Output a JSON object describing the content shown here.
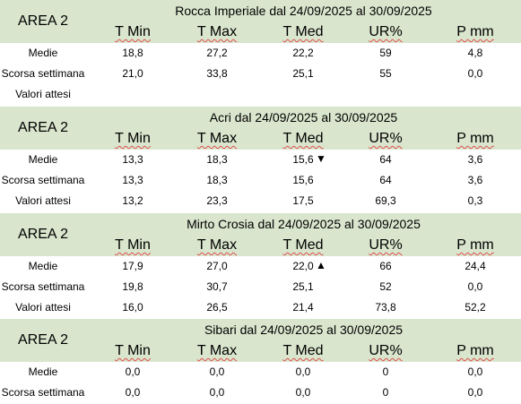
{
  "area_label": "AREA 2",
  "columns": [
    "T Min",
    "T Max",
    "T Med",
    "UR%",
    "P mm"
  ],
  "row_labels": [
    "Medie",
    "Scorsa settimana",
    "Valori attesi"
  ],
  "sections": [
    {
      "title": "Rocca Imperiale  dal 24/09/2025 al 30/09/2025",
      "rows": [
        [
          "18,8",
          "27,2",
          "22,2",
          "59",
          "4,8"
        ],
        [
          "21,0",
          "33,8",
          "25,1",
          "55",
          "0,0"
        ],
        [
          "",
          "",
          "",
          "",
          ""
        ]
      ],
      "trend": ""
    },
    {
      "title": "Acri dal 24/09/2025 al 30/09/2025",
      "rows": [
        [
          "13,3",
          "18,3",
          "15,6",
          "64",
          "3,6"
        ],
        [
          "13,3",
          "18,3",
          "15,6",
          "64",
          "3,6"
        ],
        [
          "13,2",
          "23,3",
          "17,5",
          "69,3",
          "0,3"
        ]
      ],
      "trend": "▼"
    },
    {
      "title": "Mirto Crosia dal 24/09/2025 al 30/09/2025",
      "rows": [
        [
          "17,9",
          "27,0",
          "22,0",
          "66",
          "24,4"
        ],
        [
          "19,8",
          "30,7",
          "25,1",
          "52",
          "0,0"
        ],
        [
          "16,0",
          "26,5",
          "21,4",
          "73,8",
          "52,2"
        ]
      ],
      "trend": "▲"
    },
    {
      "title": "Sibari dal 24/09/2025 al 30/09/2025",
      "rows": [
        [
          "0,0",
          "0,0",
          "0,0",
          "0",
          "0,0"
        ],
        [
          "0,0",
          "0,0",
          "0,0",
          "0",
          "0,0"
        ]
      ],
      "trend": ""
    }
  ],
  "colors": {
    "header_bg": "#d9e5cd",
    "spellcheck_underline": "#e05050"
  }
}
